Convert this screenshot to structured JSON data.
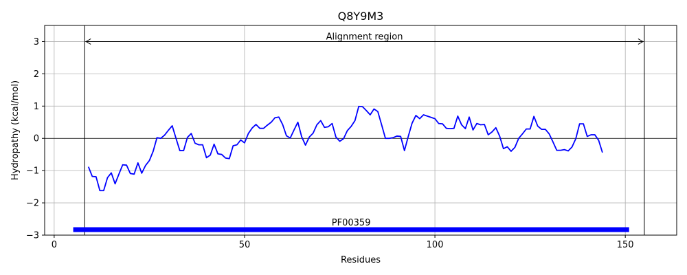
{
  "chart_data": {
    "type": "line",
    "title": "Q8Y9M3",
    "xlabel": "Residues",
    "ylabel": "Hydropathy (kcal/mol)",
    "xlim": [
      -2.5,
      163.5
    ],
    "ylim": [
      -3,
      3.5
    ],
    "xticks": [
      0,
      50,
      100,
      150
    ],
    "yticks": [
      -3,
      -2,
      -1,
      0,
      1,
      2,
      3
    ],
    "xtick_labels": [
      "0",
      "50",
      "100",
      "150"
    ],
    "ytick_labels": [
      "−3",
      "−2",
      "−1",
      "0",
      "1",
      "2",
      "3"
    ],
    "grid": true,
    "zero_line": true,
    "series": [
      {
        "color": "#0000ff",
        "x": [
          9,
          10,
          11,
          12,
          13,
          14,
          15,
          16,
          17,
          18,
          19,
          20,
          21,
          22,
          23,
          24,
          25,
          26,
          27,
          28,
          29,
          30,
          31,
          32,
          33,
          34,
          35,
          36,
          37,
          38,
          39,
          40,
          41,
          42,
          43,
          44,
          45,
          46,
          47,
          48,
          49,
          50,
          51,
          52,
          53,
          54,
          55,
          56,
          57,
          58,
          59,
          60,
          61,
          62,
          63,
          64,
          65,
          66,
          67,
          68,
          69,
          70,
          71,
          72,
          73,
          74,
          75,
          76,
          77,
          78,
          79,
          80,
          81,
          82,
          83,
          84,
          85,
          86,
          87,
          88,
          89,
          90,
          91,
          92,
          93,
          94,
          95,
          96,
          97,
          98,
          99,
          100,
          101,
          102,
          103,
          104,
          105,
          106,
          107,
          108,
          109,
          110,
          111,
          112,
          113,
          114,
          115,
          116,
          117,
          118,
          119,
          120,
          121,
          122,
          123,
          124,
          125,
          126,
          127,
          128,
          129,
          130,
          131,
          132,
          133,
          134,
          135,
          136,
          137,
          138,
          139,
          140,
          141,
          142,
          143,
          144
        ],
        "y": [
          -0.88,
          -1.18,
          -1.19,
          -1.62,
          -1.62,
          -1.22,
          -1.07,
          -1.41,
          -1.11,
          -0.82,
          -0.83,
          -1.09,
          -1.11,
          -0.76,
          -1.08,
          -0.84,
          -0.69,
          -0.4,
          0.02,
          0.0,
          0.1,
          0.25,
          0.39,
          0.0,
          -0.38,
          -0.38,
          0.03,
          0.15,
          -0.15,
          -0.2,
          -0.2,
          -0.6,
          -0.52,
          -0.18,
          -0.48,
          -0.5,
          -0.61,
          -0.63,
          -0.23,
          -0.2,
          -0.05,
          -0.14,
          0.15,
          0.32,
          0.43,
          0.31,
          0.31,
          0.41,
          0.5,
          0.64,
          0.66,
          0.43,
          0.08,
          0.01,
          0.26,
          0.5,
          0.05,
          -0.21,
          0.04,
          0.16,
          0.42,
          0.55,
          0.34,
          0.36,
          0.46,
          0.04,
          -0.09,
          -0.01,
          0.24,
          0.37,
          0.55,
          0.99,
          0.98,
          0.86,
          0.73,
          0.91,
          0.83,
          0.42,
          0.0,
          0.0,
          0.02,
          0.07,
          0.06,
          -0.38,
          0.06,
          0.47,
          0.71,
          0.61,
          0.73,
          0.69,
          0.65,
          0.61,
          0.46,
          0.45,
          0.31,
          0.3,
          0.31,
          0.69,
          0.42,
          0.3,
          0.66,
          0.26,
          0.46,
          0.42,
          0.43,
          0.11,
          0.2,
          0.33,
          0.07,
          -0.32,
          -0.26,
          -0.4,
          -0.28,
          0.0,
          0.14,
          0.29,
          0.29,
          0.68,
          0.38,
          0.28,
          0.28,
          0.14,
          -0.11,
          -0.37,
          -0.37,
          -0.35,
          -0.39,
          -0.27,
          -0.01,
          0.45,
          0.45,
          0.06,
          0.11,
          0.11,
          -0.06,
          -0.44
        ]
      }
    ],
    "vlines": [
      8,
      155
    ],
    "arrow": {
      "x_start": 8,
      "x_end": 155,
      "y": 3,
      "label": "Alignment region"
    },
    "domain_bar": {
      "x_start": 5,
      "x_end": 151,
      "y": -2.83,
      "label": "PF00359",
      "color": "#0000ff"
    }
  }
}
